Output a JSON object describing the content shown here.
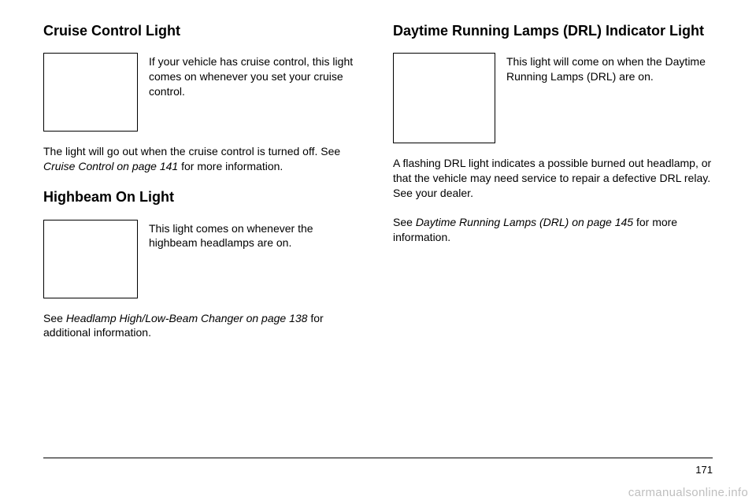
{
  "left": {
    "section1": {
      "heading": "Cruise Control Light",
      "icon_text": "If your vehicle has cruise control, this light comes on whenever you set your cruise control.",
      "body_prefix": "The light will go out when the cruise control is turned off. See ",
      "body_italic": "Cruise Control on page 141",
      "body_suffix": " for more information."
    },
    "section2": {
      "heading": "Highbeam On Light",
      "icon_text": "This light comes on whenever the highbeam headlamps are on.",
      "body_prefix": "See ",
      "body_italic": "Headlamp High/Low-Beam Changer on page 138",
      "body_suffix": " for additional information."
    }
  },
  "right": {
    "section1": {
      "heading": "Daytime Running Lamps (DRL) Indicator Light",
      "icon_text": "This light will come on when the Daytime Running Lamps (DRL) are on.",
      "body1": "A flashing DRL light indicates a possible burned out headlamp, or that the vehicle may need service to repair a defective DRL relay. See your dealer.",
      "body2_prefix": "See ",
      "body2_italic": "Daytime Running Lamps (DRL) on page 145",
      "body2_suffix": " for more information."
    }
  },
  "page_number": "171",
  "watermark": "carmanualsonline.info"
}
